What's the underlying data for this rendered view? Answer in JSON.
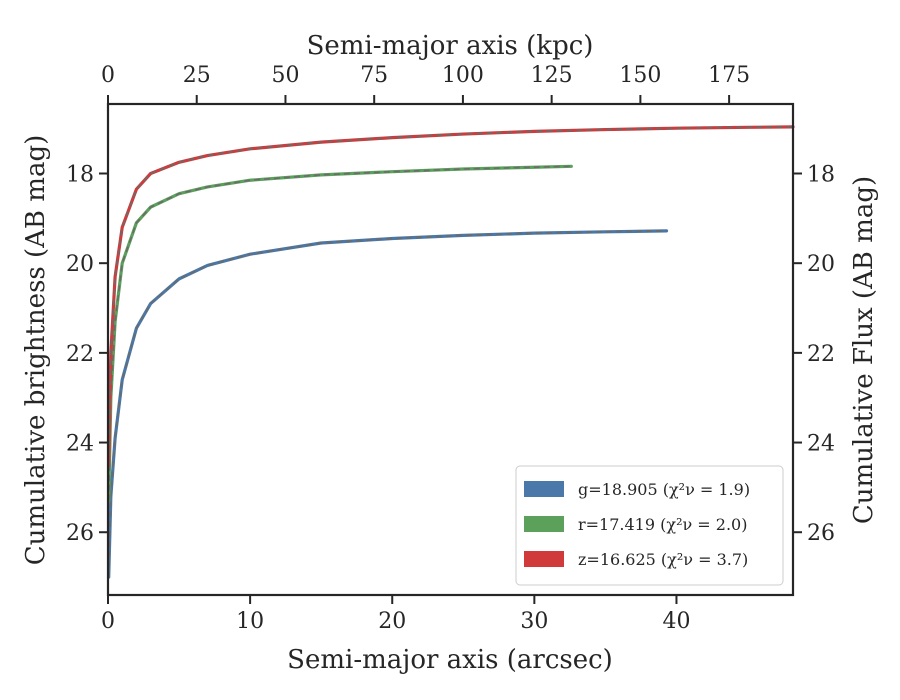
{
  "chart_data": {
    "type": "line",
    "xlabel": "Semi-major axis (arcsec)",
    "x2label": "Semi-major axis (kpc)",
    "ylabel": "Cumulative brightness (AB mag)",
    "y2label": "Cumulative Flux (AB mag)",
    "xlim": [
      0,
      48.2
    ],
    "x2lim": [
      0,
      193
    ],
    "ylim": [
      27.4,
      16.45
    ],
    "y_inverted": true,
    "xticks": [
      0,
      10,
      20,
      30,
      40
    ],
    "x2ticks": [
      0,
      25,
      50,
      75,
      100,
      125,
      150,
      175
    ],
    "yticks": [
      18,
      20,
      22,
      24,
      26
    ],
    "grid": false,
    "legend_position": "lower right",
    "colors": {
      "axis": "#262626",
      "model": "#6b6b6b"
    },
    "series": [
      {
        "name": "g=18.905 (χ²ν = 1.9)",
        "color": "#4a78a8",
        "x": [
          0.05,
          0.2,
          0.5,
          1,
          2,
          3,
          5,
          7,
          10,
          15,
          20,
          25,
          30,
          35,
          39.3
        ],
        "y": [
          27.0,
          25.2,
          23.9,
          22.6,
          21.45,
          20.9,
          20.35,
          20.05,
          19.8,
          19.55,
          19.45,
          19.38,
          19.33,
          19.3,
          19.28
        ]
      },
      {
        "name": "r=17.419 (χ²ν = 2.0)",
        "color": "#5ba05b",
        "x": [
          0.05,
          0.2,
          0.5,
          1,
          2,
          3,
          5,
          7,
          10,
          15,
          20,
          25,
          30,
          32.6
        ],
        "y": [
          25.3,
          23.0,
          21.3,
          20.0,
          19.1,
          18.75,
          18.45,
          18.3,
          18.15,
          18.03,
          17.96,
          17.9,
          17.86,
          17.84
        ]
      },
      {
        "name": "z=16.625 (χ²ν = 3.7)",
        "color": "#d03a3a",
        "x": [
          0.05,
          0.2,
          0.5,
          1,
          2,
          3,
          5,
          7,
          10,
          15,
          20,
          25,
          30,
          35,
          40,
          45,
          48.2
        ],
        "y": [
          24.5,
          22.0,
          20.3,
          19.2,
          18.35,
          18.0,
          17.75,
          17.6,
          17.45,
          17.3,
          17.2,
          17.12,
          17.06,
          17.02,
          16.99,
          16.97,
          16.96
        ]
      }
    ]
  }
}
